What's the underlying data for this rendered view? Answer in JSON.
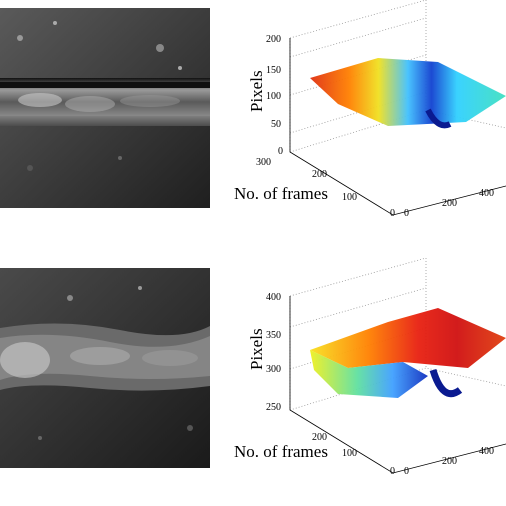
{
  "photos": [
    {
      "type": "grayscale weld bead image"
    },
    {
      "type": "grayscale weld bead image"
    }
  ],
  "chart_data": [
    {
      "type": "surface",
      "ylabel": "No. of frames",
      "zlabel": "Pixels",
      "y_ticks": [
        "0",
        "100",
        "200",
        "300"
      ],
      "x_ticks": [
        "0",
        "200",
        "400"
      ],
      "z_ticks": [
        "0",
        "50",
        "100",
        "150",
        "200"
      ],
      "zlim": [
        0,
        200
      ],
      "colormap": "jet",
      "grid": true
    },
    {
      "type": "surface",
      "ylabel": "No. of frames",
      "zlabel": "Pixels",
      "y_ticks": [
        "0",
        "100",
        "200"
      ],
      "x_ticks": [
        "0",
        "200",
        "400"
      ],
      "z_ticks": [
        "250",
        "300",
        "350",
        "400"
      ],
      "zlim": [
        250,
        400
      ],
      "colormap": "jet",
      "grid": true
    }
  ]
}
